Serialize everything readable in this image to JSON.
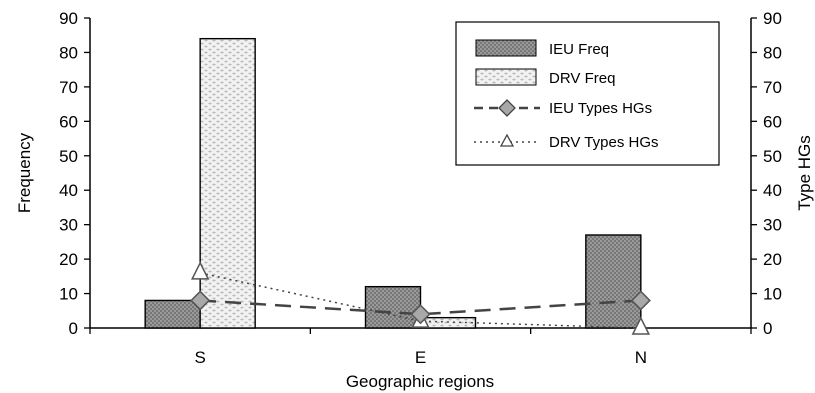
{
  "chart_data": {
    "type": "bar",
    "title": "",
    "xlabel": "Geographic regions",
    "ylabel": "Frequency",
    "y2label": "Type HGs",
    "categories": [
      "S",
      "E",
      "N"
    ],
    "ylim": [
      0,
      90
    ],
    "y2lim": [
      0,
      90
    ],
    "yticks": [
      "0",
      "10",
      "20",
      "30",
      "40",
      "50",
      "60",
      "70",
      "80",
      "90"
    ],
    "y2ticks": [
      "0",
      "10",
      "20",
      "30",
      "40",
      "50",
      "60",
      "70",
      "80",
      "90"
    ],
    "grid": false,
    "legend_position": "top-right",
    "bar_series": [
      {
        "name": "IEU Freq",
        "values": [
          8,
          12,
          27
        ],
        "color": "#8c8c8c"
      },
      {
        "name": "DRV Freq",
        "values": [
          84,
          3,
          0
        ],
        "color": "#e6e6e6"
      }
    ],
    "line_series": [
      {
        "name": "IEU Types HGs",
        "values": [
          8,
          4,
          8
        ],
        "axis": "right",
        "color": "#555555",
        "marker": "diamond",
        "dash": "dashed"
      },
      {
        "name": "DRV Types HGs",
        "values": [
          16,
          2,
          0
        ],
        "axis": "right",
        "color": "#555555",
        "marker": "triangle",
        "dash": "dotted"
      }
    ]
  }
}
